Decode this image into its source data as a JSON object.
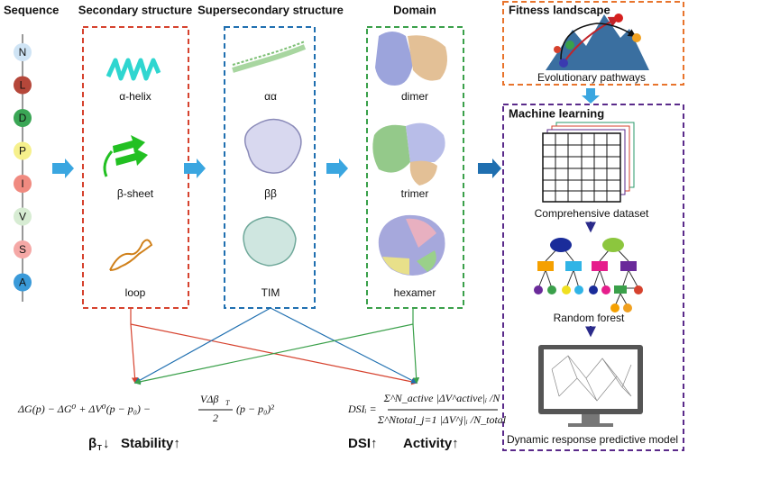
{
  "headers": {
    "sequence": "Sequence",
    "secondary": "Secondary structure",
    "supersecondary": "Supersecondary structure",
    "domain": "Domain"
  },
  "sequence": [
    {
      "letter": "N",
      "color": "#cfe4f5"
    },
    {
      "letter": "L",
      "color": "#b5473a"
    },
    {
      "letter": "D",
      "color": "#3aa655"
    },
    {
      "letter": "P",
      "color": "#f6f08c"
    },
    {
      "letter": "I",
      "color": "#f08a80"
    },
    {
      "letter": "V",
      "color": "#d7ecd3"
    },
    {
      "letter": "S",
      "color": "#f5a8a6"
    },
    {
      "letter": "A",
      "color": "#3a9ad9"
    }
  ],
  "secondary": [
    "α-helix",
    "β-sheet",
    "loop"
  ],
  "supersecondary": [
    "αα",
    "ββ",
    "TIM"
  ],
  "domain": [
    "dimer",
    "trimer",
    "hexamer"
  ],
  "fitness": {
    "title": "Fitness landscape",
    "caption": "Evolutionary pathways"
  },
  "machine_learning": {
    "title": "Machine learning",
    "dataset": "Comprehensive dataset",
    "forest": "Random forest",
    "model": "Dynamic response predictive model"
  },
  "equations": {
    "stability": "ΔG(p) − ΔG⁰ + ΔV⁰(p − p₀) − ",
    "stability_frac_num": "VΔβ",
    "stability_frac_num_sub": "T",
    "stability_frac_den": "2",
    "stability_tail": "(p − p₀)²",
    "dsi_lhs": "DSIᵢ =",
    "dsi_num": "Σ^N_active |ΔV^active|ᵢ /N",
    "dsi_den": "Σ^Ntotal_j=1 |ΔV^j|ᵢ /N_total"
  },
  "outcomes": {
    "beta": "β",
    "beta_sub": "T",
    "beta_arrow": "↓",
    "stability": "Stability↑",
    "dsi": "DSI↑",
    "activity": "Activity↑"
  }
}
